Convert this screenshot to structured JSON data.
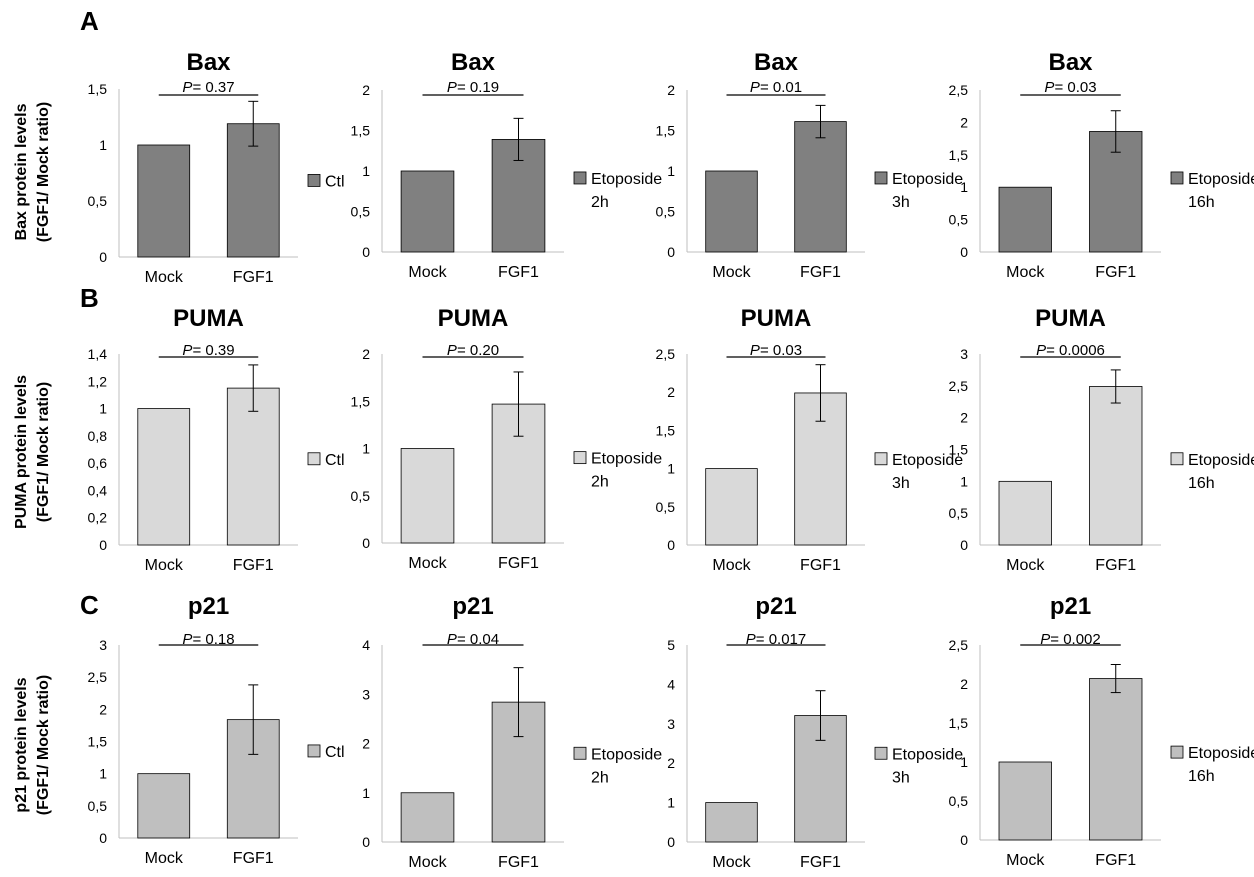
{
  "figure": {
    "rows": [
      {
        "panel_letter": "A",
        "ylabel_line1": "Bax protein levels",
        "ylabel_line2": "(FGF1/ Mock ratio)",
        "bar_color": "#808080",
        "charts": [
          {
            "title": "Bax",
            "p_prefix": "P",
            "p_value": "= 0.37",
            "categories": [
              "Mock",
              "FGF1"
            ],
            "values": [
              1,
              1.19
            ],
            "errors": [
              0,
              0.2
            ],
            "yticks": [
              "0",
              "0,5",
              "1",
              "1,5"
            ],
            "ymax": 1.5,
            "legend": [
              "Ctl"
            ]
          },
          {
            "title": "Bax",
            "p_prefix": "P",
            "p_value": "= 0.19",
            "categories": [
              "Mock",
              "FGF1"
            ],
            "values": [
              1,
              1.39
            ],
            "errors": [
              0,
              0.26
            ],
            "yticks": [
              "0",
              "0,5",
              "1",
              "1,5",
              "2"
            ],
            "ymax": 2,
            "legend": [
              "Etoposide",
              "2h"
            ]
          },
          {
            "title": "Bax",
            "p_prefix": "P",
            "p_value": "= 0.01",
            "categories": [
              "Mock",
              "FGF1"
            ],
            "values": [
              1,
              1.61
            ],
            "errors": [
              0,
              0.2
            ],
            "yticks": [
              "0",
              "0,5",
              "1",
              "1,5",
              "2"
            ],
            "ymax": 2,
            "legend": [
              "Etoposide",
              "3h"
            ]
          },
          {
            "title": "Bax",
            "p_prefix": "P",
            "p_value": "= 0.03",
            "categories": [
              "Mock",
              "FGF1"
            ],
            "values": [
              1,
              1.86
            ],
            "errors": [
              0,
              0.32
            ],
            "yticks": [
              "0",
              "0,5",
              "1",
              "1,5",
              "2",
              "2,5"
            ],
            "ymax": 2.5,
            "legend": [
              "Etoposide",
              "16h"
            ]
          }
        ]
      },
      {
        "panel_letter": "B",
        "ylabel_line1": "PUMA protein levels",
        "ylabel_line2": "(FGF1/ Mock ratio)",
        "bar_color": "#d9d9d9",
        "charts": [
          {
            "title": "PUMA",
            "p_prefix": "P",
            "p_value": "= 0.39",
            "categories": [
              "Mock",
              "FGF1"
            ],
            "values": [
              1,
              1.15
            ],
            "errors": [
              0,
              0.17
            ],
            "yticks": [
              "0",
              "0,2",
              "0,4",
              "0,6",
              "0,8",
              "1",
              "1,2",
              "1,4"
            ],
            "ymax": 1.4,
            "legend": [
              "Ctl"
            ]
          },
          {
            "title": "PUMA",
            "p_prefix": "P",
            "p_value": "= 0.20",
            "categories": [
              "Mock",
              "FGF1"
            ],
            "values": [
              1,
              1.47
            ],
            "errors": [
              0,
              0.34
            ],
            "yticks": [
              "0",
              "0,5",
              "1",
              "1,5",
              "2"
            ],
            "ymax": 2,
            "legend": [
              "Etoposide",
              "2h"
            ]
          },
          {
            "title": "PUMA",
            "p_prefix": "P",
            "p_value": "= 0.03",
            "categories": [
              "Mock",
              "FGF1"
            ],
            "values": [
              1,
              1.99
            ],
            "errors": [
              0,
              0.37
            ],
            "yticks": [
              "0",
              "0,5",
              "1",
              "1,5",
              "2",
              "2,5"
            ],
            "ymax": 2.5,
            "legend": [
              "Etoposide",
              "3h"
            ]
          },
          {
            "title": "PUMA",
            "p_prefix": "P",
            "p_value": "= 0.0006",
            "categories": [
              "Mock",
              "FGF1"
            ],
            "values": [
              1,
              2.49
            ],
            "errors": [
              0,
              0.26
            ],
            "yticks": [
              "0",
              "0,5",
              "1",
              "1,5",
              "2",
              "2,5",
              "3"
            ],
            "ymax": 3,
            "legend": [
              "Etoposide",
              "16h"
            ]
          }
        ]
      },
      {
        "panel_letter": "C",
        "ylabel_line1": "p21 protein levels",
        "ylabel_line2": "(FGF1/ Mock ratio)",
        "bar_color": "#bfbfbf",
        "charts": [
          {
            "title": "p21",
            "p_prefix": "P",
            "p_value": "= 0.18",
            "categories": [
              "Mock",
              "FGF1"
            ],
            "values": [
              1,
              1.84
            ],
            "errors": [
              0,
              0.54
            ],
            "yticks": [
              "0",
              "0,5",
              "1",
              "1,5",
              "2",
              "2,5",
              "3"
            ],
            "ymax": 3,
            "legend": [
              "Ctl"
            ]
          },
          {
            "title": "p21",
            "p_prefix": "P",
            "p_value": "= 0.04",
            "categories": [
              "Mock",
              "FGF1"
            ],
            "values": [
              1,
              2.84
            ],
            "errors": [
              0,
              0.7
            ],
            "yticks": [
              "0",
              "1",
              "2",
              "3",
              "4"
            ],
            "ymax": 4,
            "legend": [
              "Etoposide",
              "2h"
            ]
          },
          {
            "title": "p21",
            "p_prefix": "P",
            "p_value": "= 0.017",
            "categories": [
              "Mock",
              "FGF1"
            ],
            "values": [
              1,
              3.21
            ],
            "errors": [
              0,
              0.63
            ],
            "yticks": [
              "0",
              "1",
              "2",
              "3",
              "4",
              "5"
            ],
            "ymax": 5,
            "legend": [
              "Etoposide",
              "3h"
            ]
          },
          {
            "title": "p21",
            "p_prefix": "P",
            "p_value": "= 0.002",
            "categories": [
              "Mock",
              "FGF1"
            ],
            "values": [
              1,
              2.07
            ],
            "errors": [
              0,
              0.18
            ],
            "yticks": [
              "0",
              "0,5",
              "1",
              "1,5",
              "2",
              "2,5"
            ],
            "ymax": 2.5,
            "legend": [
              "Etoposide",
              "16h"
            ]
          }
        ]
      }
    ]
  },
  "chart_data": [
    {
      "type": "bar",
      "title": "Bax",
      "ylabel": "Bax protein levels (FGF1/ Mock ratio)",
      "annotation": "P= 0.37",
      "categories": [
        "Mock",
        "FGF1"
      ],
      "series": [
        {
          "name": "Ctl",
          "values": [
            1,
            1.19
          ],
          "error": [
            0,
            0.2
          ]
        }
      ],
      "ylim": [
        0,
        1.5
      ]
    },
    {
      "type": "bar",
      "title": "Bax",
      "annotation": "P= 0.19",
      "categories": [
        "Mock",
        "FGF1"
      ],
      "series": [
        {
          "name": "Etoposide 2h",
          "values": [
            1,
            1.39
          ],
          "error": [
            0,
            0.26
          ]
        }
      ],
      "ylim": [
        0,
        2
      ]
    },
    {
      "type": "bar",
      "title": "Bax",
      "annotation": "P= 0.01",
      "categories": [
        "Mock",
        "FGF1"
      ],
      "series": [
        {
          "name": "Etoposide 3h",
          "values": [
            1,
            1.61
          ],
          "error": [
            0,
            0.2
          ]
        }
      ],
      "ylim": [
        0,
        2
      ]
    },
    {
      "type": "bar",
      "title": "Bax",
      "annotation": "P= 0.03",
      "categories": [
        "Mock",
        "FGF1"
      ],
      "series": [
        {
          "name": "Etoposide 16h",
          "values": [
            1,
            1.86
          ],
          "error": [
            0,
            0.32
          ]
        }
      ],
      "ylim": [
        0,
        2.5
      ]
    },
    {
      "type": "bar",
      "title": "PUMA",
      "ylabel": "PUMA protein levels (FGF1/ Mock ratio)",
      "annotation": "P= 0.39",
      "categories": [
        "Mock",
        "FGF1"
      ],
      "series": [
        {
          "name": "Ctl",
          "values": [
            1,
            1.15
          ],
          "error": [
            0,
            0.17
          ]
        }
      ],
      "ylim": [
        0,
        1.4
      ]
    },
    {
      "type": "bar",
      "title": "PUMA",
      "annotation": "P= 0.20",
      "categories": [
        "Mock",
        "FGF1"
      ],
      "series": [
        {
          "name": "Etoposide 2h",
          "values": [
            1,
            1.47
          ],
          "error": [
            0,
            0.34
          ]
        }
      ],
      "ylim": [
        0,
        2
      ]
    },
    {
      "type": "bar",
      "title": "PUMA",
      "annotation": "P= 0.03",
      "categories": [
        "Mock",
        "FGF1"
      ],
      "series": [
        {
          "name": "Etoposide 3h",
          "values": [
            1,
            1.99
          ],
          "error": [
            0,
            0.37
          ]
        }
      ],
      "ylim": [
        0,
        2.5
      ]
    },
    {
      "type": "bar",
      "title": "PUMA",
      "annotation": "P= 0.0006",
      "categories": [
        "Mock",
        "FGF1"
      ],
      "series": [
        {
          "name": "Etoposide 16h",
          "values": [
            1,
            2.49
          ],
          "error": [
            0,
            0.26
          ]
        }
      ],
      "ylim": [
        0,
        3
      ]
    },
    {
      "type": "bar",
      "title": "p21",
      "ylabel": "p21 protein levels (FGF1/ Mock ratio)",
      "annotation": "P= 0.18",
      "categories": [
        "Mock",
        "FGF1"
      ],
      "series": [
        {
          "name": "Ctl",
          "values": [
            1,
            1.84
          ],
          "error": [
            0,
            0.54
          ]
        }
      ],
      "ylim": [
        0,
        3
      ]
    },
    {
      "type": "bar",
      "title": "p21",
      "annotation": "P= 0.04",
      "categories": [
        "Mock",
        "FGF1"
      ],
      "series": [
        {
          "name": "Etoposide 2h",
          "values": [
            1,
            2.84
          ],
          "error": [
            0,
            0.7
          ]
        }
      ],
      "ylim": [
        0,
        4
      ]
    },
    {
      "type": "bar",
      "title": "p21",
      "annotation": "P= 0.017",
      "categories": [
        "Mock",
        "FGF1"
      ],
      "series": [
        {
          "name": "Etoposide 3h",
          "values": [
            1,
            3.21
          ],
          "error": [
            0,
            0.63
          ]
        }
      ],
      "ylim": [
        0,
        5
      ]
    },
    {
      "type": "bar",
      "title": "p21",
      "annotation": "P= 0.002",
      "categories": [
        "Mock",
        "FGF1"
      ],
      "series": [
        {
          "name": "Etoposide 16h",
          "values": [
            1,
            2.07
          ],
          "error": [
            0,
            0.18
          ]
        }
      ],
      "ylim": [
        0,
        2.5
      ]
    }
  ]
}
